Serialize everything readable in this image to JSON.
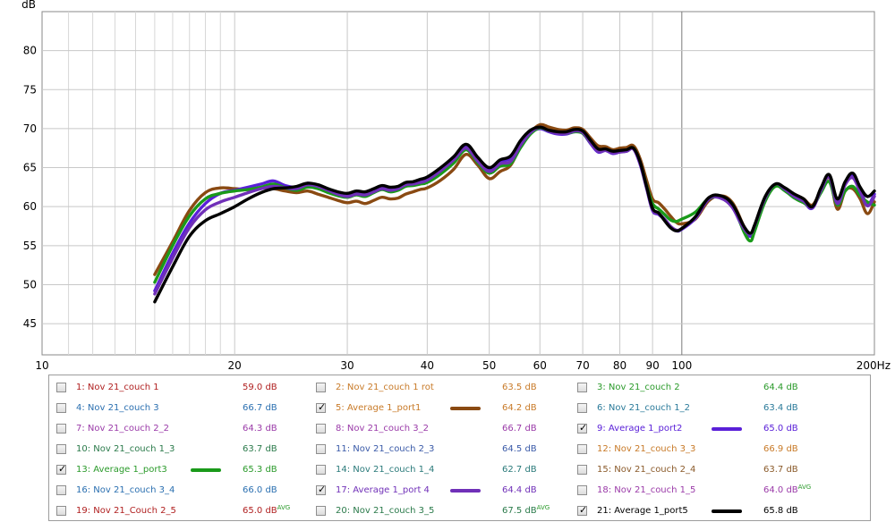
{
  "chart_data": {
    "type": "line",
    "ylabel": "dB",
    "xscale": "log",
    "xlim": [
      10,
      200
    ],
    "ylim": [
      41,
      85
    ],
    "x_ticks": [
      "10",
      "20",
      "30",
      "40",
      "50",
      "60",
      "70",
      "80",
      "90",
      "100",
      "200Hz"
    ],
    "y_ticks": [
      "45",
      "50",
      "55",
      "60",
      "65",
      "70",
      "75",
      "80"
    ],
    "grid": true,
    "legend_position": "bottom",
    "series": [
      {
        "name": "5: Average 1_port1",
        "color": "#8a4a12",
        "x": [
          15,
          16,
          17,
          18,
          19,
          20,
          21,
          22,
          23,
          24,
          25,
          26,
          27,
          28,
          29,
          30,
          31,
          32,
          33,
          34,
          35,
          36,
          37,
          38,
          39,
          40,
          42,
          44,
          46,
          48,
          50,
          52,
          54,
          56,
          58,
          60,
          62,
          64,
          66,
          68,
          70,
          72,
          74,
          76,
          78,
          80,
          82,
          84,
          86,
          88,
          90,
          92,
          94,
          96,
          98,
          100,
          105,
          110,
          115,
          120,
          125,
          128,
          130,
          135,
          140,
          145,
          150,
          155,
          160,
          165,
          170,
          175,
          180,
          185,
          190,
          195,
          200
        ],
        "values": [
          51.3,
          55.5,
          59.5,
          61.8,
          62.4,
          62.3,
          62.2,
          62.4,
          62.3,
          62.0,
          61.8,
          62.0,
          61.6,
          61.2,
          60.8,
          60.5,
          60.7,
          60.4,
          60.8,
          61.2,
          61.0,
          61.1,
          61.6,
          61.9,
          62.2,
          62.4,
          63.4,
          64.8,
          66.7,
          65.3,
          63.6,
          64.5,
          65.3,
          67.8,
          69.5,
          70.5,
          70.2,
          69.9,
          69.8,
          70.1,
          69.9,
          68.8,
          67.8,
          67.7,
          67.3,
          67.5,
          67.6,
          67.8,
          66.2,
          63.5,
          61.0,
          60.5,
          59.7,
          58.8,
          58.0,
          57.8,
          58.4,
          60.7,
          61.4,
          60.5,
          57.5,
          56.2,
          57.2,
          60.9,
          62.8,
          62.3,
          61.6,
          61.0,
          60.2,
          62.1,
          63.7,
          59.7,
          62.0,
          62.3,
          61.0,
          59.1,
          60.6
        ]
      },
      {
        "name": "9: Average 1_port2",
        "color": "#5a20d8",
        "x": [
          15,
          16,
          17,
          18,
          19,
          20,
          21,
          22,
          23,
          24,
          25,
          26,
          27,
          28,
          29,
          30,
          31,
          32,
          33,
          34,
          35,
          36,
          37,
          38,
          39,
          40,
          42,
          44,
          46,
          48,
          50,
          52,
          54,
          56,
          58,
          60,
          62,
          64,
          66,
          68,
          70,
          72,
          74,
          76,
          78,
          80,
          82,
          84,
          86,
          88,
          90,
          92,
          94,
          96,
          98,
          100,
          105,
          110,
          115,
          120,
          125,
          128,
          130,
          135,
          140,
          145,
          150,
          155,
          160,
          165,
          170,
          175,
          180,
          185,
          190,
          195,
          200
        ],
        "values": [
          49.2,
          54.0,
          57.9,
          60.4,
          61.7,
          62.1,
          62.5,
          62.9,
          63.3,
          62.7,
          62.5,
          63.0,
          62.7,
          62.2,
          61.7,
          61.4,
          61.7,
          61.6,
          62.1,
          62.6,
          62.3,
          62.4,
          62.9,
          63.0,
          63.3,
          63.6,
          64.9,
          66.2,
          67.8,
          66.0,
          64.7,
          65.8,
          66.2,
          68.2,
          69.5,
          70.0,
          69.6,
          69.3,
          69.3,
          69.6,
          69.4,
          68.1,
          67.0,
          67.2,
          66.8,
          67.0,
          67.1,
          67.4,
          65.5,
          62.5,
          59.5,
          59.0,
          58.3,
          57.4,
          56.9,
          57.1,
          58.5,
          60.9,
          61.1,
          59.9,
          57.0,
          56.2,
          57.4,
          61.0,
          62.8,
          62.1,
          61.2,
          60.6,
          59.8,
          62.2,
          63.9,
          60.6,
          63.0,
          64.1,
          62.2,
          60.3,
          61.6
        ]
      },
      {
        "name": "13: Average 1_port3",
        "color": "#1a9a1a",
        "x": [
          15,
          16,
          17,
          18,
          19,
          20,
          21,
          22,
          23,
          24,
          25,
          26,
          27,
          28,
          29,
          30,
          31,
          32,
          33,
          34,
          35,
          36,
          37,
          38,
          39,
          40,
          42,
          44,
          46,
          48,
          50,
          52,
          54,
          56,
          58,
          60,
          62,
          64,
          66,
          68,
          70,
          72,
          74,
          76,
          78,
          80,
          82,
          84,
          86,
          88,
          90,
          92,
          94,
          96,
          98,
          100,
          105,
          110,
          115,
          120,
          125,
          128,
          130,
          135,
          140,
          145,
          150,
          155,
          160,
          165,
          170,
          175,
          180,
          185,
          190,
          195,
          200
        ],
        "values": [
          50.3,
          55.0,
          58.8,
          61.0,
          61.7,
          62.0,
          62.2,
          62.5,
          62.9,
          62.4,
          62.1,
          62.5,
          62.3,
          61.8,
          61.4,
          61.2,
          61.5,
          61.3,
          61.8,
          62.2,
          61.9,
          62.1,
          62.6,
          62.7,
          62.9,
          63.1,
          64.2,
          65.6,
          67.3,
          65.6,
          64.3,
          65.2,
          65.5,
          67.6,
          69.3,
          70.1,
          69.7,
          69.5,
          69.4,
          69.6,
          69.4,
          68.2,
          67.2,
          67.3,
          67.0,
          67.1,
          67.2,
          67.5,
          65.7,
          62.8,
          60.4,
          59.7,
          59.0,
          58.3,
          58.1,
          58.4,
          59.3,
          61.0,
          61.2,
          60.3,
          56.8,
          55.6,
          56.9,
          60.7,
          62.6,
          62.0,
          61.1,
          60.5,
          60.0,
          61.8,
          63.2,
          60.2,
          62.0,
          62.6,
          61.4,
          60.6,
          60.2
        ]
      },
      {
        "name": "17: Average 1_port 4",
        "color": "#7030b8",
        "x": [
          15,
          16,
          17,
          18,
          19,
          20,
          21,
          22,
          23,
          24,
          25,
          26,
          27,
          28,
          29,
          30,
          31,
          32,
          33,
          34,
          35,
          36,
          37,
          38,
          39,
          40,
          42,
          44,
          46,
          48,
          50,
          52,
          54,
          56,
          58,
          60,
          62,
          64,
          66,
          68,
          70,
          72,
          74,
          76,
          78,
          80,
          82,
          84,
          86,
          88,
          90,
          92,
          94,
          96,
          98,
          100,
          105,
          110,
          115,
          120,
          125,
          128,
          130,
          135,
          140,
          145,
          150,
          155,
          160,
          165,
          170,
          175,
          180,
          185,
          190,
          195,
          200
        ],
        "values": [
          48.8,
          53.4,
          57.3,
          59.6,
          60.6,
          61.2,
          61.8,
          62.3,
          62.6,
          62.4,
          62.3,
          62.8,
          62.6,
          62.1,
          61.6,
          61.3,
          61.6,
          61.5,
          61.9,
          62.3,
          62.1,
          62.3,
          62.8,
          62.9,
          63.1,
          63.4,
          64.6,
          66.0,
          67.5,
          65.8,
          64.5,
          65.5,
          65.8,
          67.9,
          69.5,
          70.2,
          69.7,
          69.4,
          69.4,
          69.7,
          69.5,
          68.2,
          67.1,
          67.2,
          66.9,
          67.0,
          67.1,
          67.4,
          65.6,
          62.6,
          59.6,
          59.1,
          58.4,
          57.5,
          57.0,
          57.2,
          58.6,
          61.0,
          61.1,
          59.9,
          57.2,
          56.5,
          57.6,
          61.1,
          62.9,
          62.2,
          61.3,
          60.7,
          59.9,
          62.1,
          63.8,
          60.4,
          62.8,
          63.7,
          61.9,
          60.1,
          61.3
        ]
      },
      {
        "name": "21: Average 1_port5",
        "color": "#000000",
        "x": [
          15,
          16,
          17,
          18,
          19,
          20,
          21,
          22,
          23,
          24,
          25,
          26,
          27,
          28,
          29,
          30,
          31,
          32,
          33,
          34,
          35,
          36,
          37,
          38,
          39,
          40,
          42,
          44,
          46,
          48,
          50,
          52,
          54,
          56,
          58,
          60,
          62,
          64,
          66,
          68,
          70,
          72,
          74,
          76,
          78,
          80,
          82,
          84,
          86,
          88,
          90,
          92,
          94,
          96,
          98,
          100,
          105,
          110,
          115,
          120,
          125,
          128,
          130,
          135,
          140,
          145,
          150,
          155,
          160,
          165,
          170,
          175,
          180,
          185,
          190,
          195,
          200
        ],
        "values": [
          47.8,
          52.3,
          56.2,
          58.2,
          59.1,
          60.0,
          61.0,
          61.8,
          62.3,
          62.4,
          62.6,
          63.0,
          62.8,
          62.3,
          61.9,
          61.7,
          62.0,
          61.9,
          62.3,
          62.7,
          62.5,
          62.6,
          63.1,
          63.2,
          63.5,
          63.8,
          65.0,
          66.4,
          68.0,
          66.3,
          65.0,
          66.0,
          66.5,
          68.5,
          69.8,
          70.2,
          69.8,
          69.6,
          69.6,
          69.9,
          69.7,
          68.5,
          67.4,
          67.4,
          67.1,
          67.2,
          67.3,
          67.5,
          65.8,
          62.7,
          59.8,
          59.2,
          58.2,
          57.3,
          56.9,
          57.2,
          58.7,
          61.1,
          61.4,
          60.3,
          57.5,
          56.6,
          57.7,
          61.3,
          62.9,
          62.4,
          61.6,
          61.0,
          60.0,
          62.4,
          64.1,
          61.0,
          63.2,
          64.3,
          62.5,
          61.3,
          62.0
        ]
      }
    ]
  },
  "legend": {
    "rows": [
      [
        {
          "label": "1: Nov 21_couch 1",
          "value": "59.0 dB",
          "checked": false,
          "label_color": "#b02020",
          "value_color": "#b02020"
        },
        {
          "label": "2: Nov 21_couch 1 rot",
          "value": "63.5 dB",
          "checked": false,
          "label_color": "#c87a28",
          "value_color": "#c87a28"
        },
        {
          "label": "3: Nov 21_couch 2",
          "value": "64.4 dB",
          "checked": false,
          "label_color": "#2a9a2a",
          "value_color": "#2a9a2a"
        }
      ],
      [
        {
          "label": "4: Nov 21_couch 3",
          "value": "66.7 dB",
          "checked": false,
          "label_color": "#2a6fb0",
          "value_color": "#2a6fb0"
        },
        {
          "label": "5: Average 1_port1",
          "value": "64.2 dB",
          "checked": true,
          "label_color": "#c87a28",
          "value_color": "#c87a28",
          "swatch": "#8a4a12"
        },
        {
          "label": "6: Nov 21_couch 1_2",
          "value": "63.4 dB",
          "checked": false,
          "label_color": "#2a7a9a",
          "value_color": "#2a7a9a"
        }
      ],
      [
        {
          "label": "7: Nov 21_couch 2_2",
          "value": "64.3 dB",
          "checked": false,
          "label_color": "#9a3aa8",
          "value_color": "#9a3aa8"
        },
        {
          "label": "8: Nov 21_couch 3_2",
          "value": "66.7 dB",
          "checked": false,
          "label_color": "#9a3aa8",
          "value_color": "#9a3aa8"
        },
        {
          "label": "9: Average 1_port2",
          "value": "65.0 dB",
          "checked": true,
          "label_color": "#5a20d8",
          "value_color": "#5a20d8",
          "swatch": "#5a20d8"
        }
      ],
      [
        {
          "label": "10: Nov 21_couch 1_3",
          "value": "63.7 dB",
          "checked": false,
          "label_color": "#2a7a4a",
          "value_color": "#2a7a4a"
        },
        {
          "label": "11: Nov 21_couch 2_3",
          "value": "64.5 dB",
          "checked": false,
          "label_color": "#3a5aa8",
          "value_color": "#3a5aa8"
        },
        {
          "label": "12: Nov 21_couch 3_3",
          "value": "66.9 dB",
          "checked": false,
          "label_color": "#c87a28",
          "value_color": "#c87a28"
        }
      ],
      [
        {
          "label": "13: Average 1_port3",
          "value": "65.3 dB",
          "checked": true,
          "label_color": "#2a9a2a",
          "value_color": "#2a9a2a",
          "swatch": "#1a9a1a"
        },
        {
          "label": "14: Nov 21_couch 1_4",
          "value": "62.7 dB",
          "checked": false,
          "label_color": "#2a7a7a",
          "value_color": "#2a7a7a"
        },
        {
          "label": "15: Nov 21_couch 2_4",
          "value": "63.7 dB",
          "checked": false,
          "label_color": "#8a5a2a",
          "value_color": "#8a5a2a"
        }
      ],
      [
        {
          "label": "16: Nov 21_couch 3_4",
          "value": "66.0 dB",
          "checked": false,
          "label_color": "#2a6fb0",
          "value_color": "#2a6fb0"
        },
        {
          "label": "17: Average 1_port 4",
          "value": "64.4 dB",
          "checked": true,
          "label_color": "#7030b8",
          "value_color": "#7030b8",
          "swatch": "#7030b8"
        },
        {
          "label": "18: Nov 21_couch 1_5",
          "value": "64.0 dB",
          "avg": "AVG",
          "checked": false,
          "label_color": "#9a3aa8",
          "value_color": "#9a3aa8"
        }
      ],
      [
        {
          "label": "19: Nov 21_Couch 2_5",
          "value": "65.0 dB",
          "avg": "AVG",
          "checked": false,
          "label_color": "#b02020",
          "value_color": "#b02020"
        },
        {
          "label": "20: Nov 21_couch 3_5",
          "value": "67.5 dB",
          "avg": "AVG",
          "checked": false,
          "label_color": "#2a7a4a",
          "value_color": "#2a7a4a"
        },
        {
          "label": "21: Average 1_port5",
          "value": "65.8 dB",
          "checked": true,
          "label_color": "#000000",
          "value_color": "#000000",
          "swatch": "#000000"
        }
      ]
    ],
    "check_mark": "✓"
  }
}
